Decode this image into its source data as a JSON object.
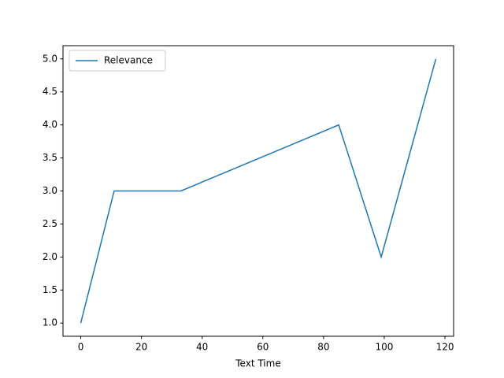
{
  "chart_data": {
    "type": "line",
    "xlabel": "Text Time",
    "x": [
      0,
      11,
      33,
      85,
      99,
      117
    ],
    "series": [
      {
        "name": "Relevance",
        "color": "#1f77b4",
        "values": [
          1,
          3,
          3,
          4,
          2,
          5
        ]
      }
    ],
    "xlim": [
      -5.85,
      122.85
    ],
    "xticks": [
      0,
      20,
      40,
      60,
      80,
      100,
      120
    ],
    "ylim": [
      0.8,
      5.2
    ],
    "yticks": [
      {
        "value": 1,
        "label": "1.0"
      },
      1.5,
      {
        "value": 2,
        "label": "2.0"
      },
      2.5,
      {
        "value": 3,
        "label": "3.0"
      },
      3.5,
      {
        "value": 4,
        "label": "4.0"
      },
      4.5,
      {
        "value": 5,
        "label": "5.0"
      }
    ],
    "legend": "upper left",
    "grid": false
  }
}
